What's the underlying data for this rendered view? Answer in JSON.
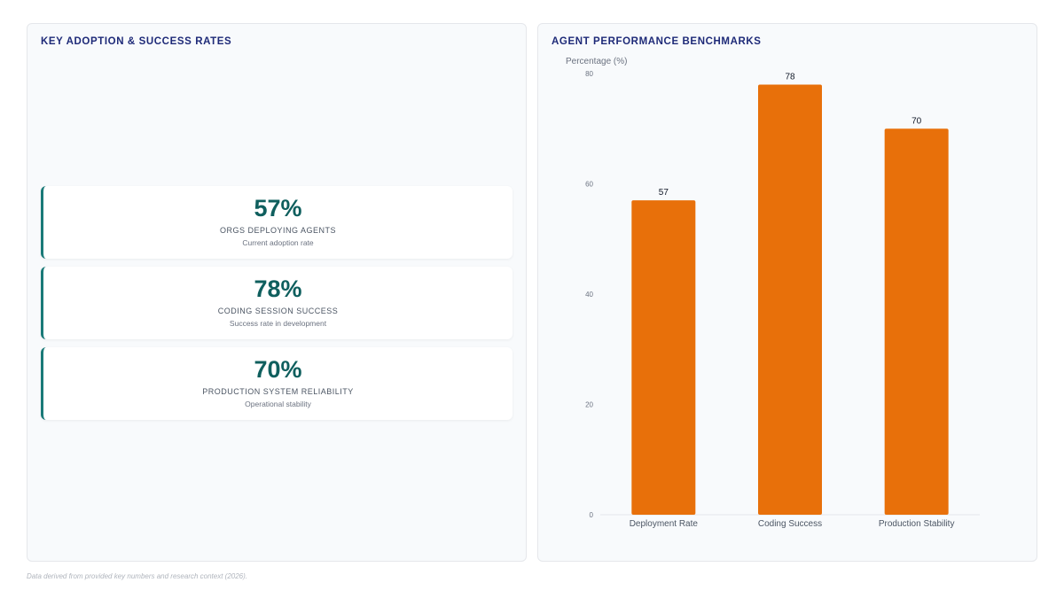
{
  "left_panel": {
    "title": "KEY ADOPTION & SUCCESS RATES",
    "cards": [
      {
        "value": "57%",
        "label": "ORGS DEPLOYING AGENTS",
        "sub": "Current adoption rate"
      },
      {
        "value": "78%",
        "label": "CODING SESSION SUCCESS",
        "sub": "Success rate in development"
      },
      {
        "value": "70%",
        "label": "PRODUCTION SYSTEM RELIABILITY",
        "sub": "Operational stability"
      }
    ],
    "accent_color": "#1a7a78",
    "value_color": "#0f5f5e"
  },
  "right_panel": {
    "title": "AGENT PERFORMANCE BENCHMARKS"
  },
  "chart_data": {
    "type": "bar",
    "categories": [
      "Deployment Rate",
      "Coding Success",
      "Production Stability"
    ],
    "values": [
      57,
      78,
      70
    ],
    "ylabel": "Percentage (%)",
    "xlabel": "",
    "ylim": [
      0,
      80
    ],
    "yticks": [
      0,
      20,
      40,
      60,
      80
    ],
    "bar_color": "#e8700a",
    "grid": false,
    "data_labels": true
  },
  "footnote": "Data derived from provided key numbers and research context (2026)."
}
